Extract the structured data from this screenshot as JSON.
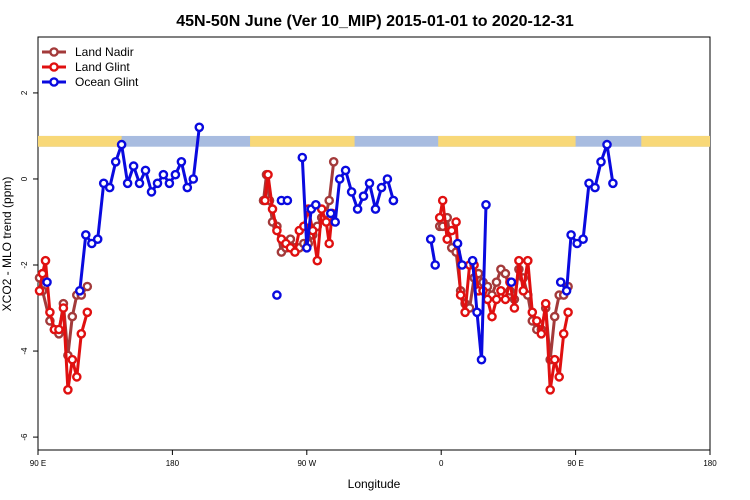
{
  "chart_data": {
    "type": "line",
    "title": "45N-50N June (Ver 10_MIP)   2015-01-01 to 2020-12-31",
    "xlabel": "Longitude",
    "ylabel": "XCO2 - MLO trend (ppm)",
    "x_ticks": [
      {
        "value": 90,
        "label": "90 E"
      },
      {
        "value": 180,
        "label": "180"
      },
      {
        "value": 270,
        "label": "90 W"
      },
      {
        "value": 360,
        "label": "0"
      },
      {
        "value": 450,
        "label": "90 E"
      },
      {
        "value": 540,
        "label": "180"
      }
    ],
    "y_ticks": [
      {
        "value": -6,
        "label": "-6"
      },
      {
        "value": -4,
        "label": "-4"
      },
      {
        "value": -2,
        "label": "-2"
      },
      {
        "value": 0,
        "label": "0"
      },
      {
        "value": 2,
        "label": "2"
      }
    ],
    "xlim": [
      90,
      540
    ],
    "ylim": [
      -6.3,
      3.3
    ],
    "grid": false,
    "legend_position": "top-left",
    "land_ocean_strip": {
      "y_range": [
        0.75,
        1.0
      ],
      "land_color": "#f8d878",
      "ocean_color": "#a8bce0",
      "land_intervals": [
        [
          90,
          146
        ],
        [
          232,
          302
        ],
        [
          358,
          450
        ],
        [
          494,
          540
        ]
      ]
    },
    "series": [
      {
        "name": "Land Nadir",
        "color": "#a33a3a",
        "points": [
          [
            91,
            -2.3
          ],
          [
            93,
            -2.6
          ],
          [
            98,
            -3.3
          ],
          [
            101,
            -3.5
          ],
          [
            104,
            -3.6
          ],
          [
            107,
            -2.9
          ],
          [
            110,
            -4.1
          ],
          [
            113,
            -3.2
          ],
          [
            116,
            -2.7
          ],
          [
            119,
            -2.7
          ],
          [
            123,
            -2.5
          ],
          null,
          [
            241,
            -0.5
          ],
          [
            243,
            0.1
          ],
          [
            245,
            -0.5
          ],
          [
            247,
            -1.0
          ],
          [
            250,
            -1.1
          ],
          [
            253,
            -1.7
          ],
          [
            256,
            -1.6
          ],
          [
            259,
            -1.4
          ],
          [
            262,
            -1.6
          ],
          [
            265,
            -1.6
          ],
          [
            268,
            -1.5
          ],
          [
            271,
            -1.5
          ],
          [
            274,
            -1.3
          ],
          [
            277,
            -1.1
          ],
          [
            280,
            -0.9
          ],
          [
            283,
            -0.8
          ],
          [
            285,
            -0.5
          ],
          [
            288,
            0.4
          ],
          null,
          [
            359,
            -1.1
          ],
          [
            361,
            -1.1
          ],
          [
            364,
            -0.9
          ],
          [
            367,
            -1.6
          ],
          [
            370,
            -1.7
          ],
          [
            373,
            -2.6
          ],
          [
            376,
            -2.9
          ],
          [
            379,
            -3.0
          ],
          [
            382,
            -2.3
          ],
          [
            385,
            -2.2
          ],
          [
            388,
            -2.4
          ],
          [
            391,
            -2.5
          ],
          [
            394,
            -2.7
          ],
          [
            397,
            -2.4
          ],
          [
            400,
            -2.1
          ],
          [
            403,
            -2.2
          ],
          [
            406,
            -2.6
          ],
          [
            409,
            -2.8
          ],
          [
            412,
            -2.1
          ],
          [
            415,
            -2.3
          ],
          [
            418,
            -2.7
          ],
          [
            421,
            -3.3
          ],
          [
            424,
            -3.5
          ],
          [
            427,
            -3.5
          ],
          [
            430,
            -3.0
          ],
          [
            433,
            -4.2
          ],
          [
            436,
            -3.2
          ],
          [
            439,
            -2.7
          ],
          [
            442,
            -2.7
          ],
          [
            445,
            -2.5
          ]
        ]
      },
      {
        "name": "Land Glint",
        "color": "#e01010",
        "points": [
          [
            91,
            -2.6
          ],
          [
            93,
            -2.2
          ],
          [
            95,
            -1.9
          ],
          [
            98,
            -3.1
          ],
          [
            101,
            -3.5
          ],
          [
            104,
            -3.5
          ],
          [
            107,
            -3.0
          ],
          [
            110,
            -4.9
          ],
          [
            113,
            -4.2
          ],
          [
            116,
            -4.6
          ],
          [
            119,
            -3.6
          ],
          [
            123,
            -3.1
          ],
          null,
          [
            242,
            -0.5
          ],
          [
            244,
            0.1
          ],
          [
            247,
            -0.7
          ],
          [
            250,
            -1.2
          ],
          [
            253,
            -1.4
          ],
          [
            256,
            -1.5
          ],
          [
            259,
            -1.6
          ],
          [
            262,
            -1.7
          ],
          [
            265,
            -1.2
          ],
          [
            268,
            -1.1
          ],
          [
            271,
            -0.7
          ],
          [
            274,
            -1.2
          ],
          [
            277,
            -1.9
          ],
          [
            280,
            -0.7
          ],
          [
            283,
            -1.0
          ],
          [
            285,
            -1.5
          ],
          [
            287,
            -0.8
          ],
          null,
          [
            359,
            -0.9
          ],
          [
            361,
            -0.5
          ],
          [
            364,
            -1.4
          ],
          [
            367,
            -1.2
          ],
          [
            370,
            -1.0
          ],
          [
            373,
            -2.7
          ],
          [
            376,
            -3.1
          ],
          [
            379,
            -2.0
          ],
          [
            382,
            -2.0
          ],
          [
            385,
            -2.6
          ],
          [
            388,
            -2.6
          ],
          [
            391,
            -2.8
          ],
          [
            394,
            -3.2
          ],
          [
            397,
            -2.8
          ],
          [
            400,
            -2.6
          ],
          [
            403,
            -2.8
          ],
          [
            406,
            -2.4
          ],
          [
            409,
            -3.0
          ],
          [
            412,
            -1.9
          ],
          [
            415,
            -2.6
          ],
          [
            418,
            -1.9
          ],
          [
            421,
            -3.1
          ],
          [
            424,
            -3.3
          ],
          [
            427,
            -3.6
          ],
          [
            430,
            -2.9
          ],
          [
            433,
            -4.9
          ],
          [
            436,
            -4.2
          ],
          [
            439,
            -4.6
          ],
          [
            442,
            -3.6
          ],
          [
            445,
            -3.1
          ]
        ]
      },
      {
        "name": "Ocean Glint",
        "color": "#0a0adf",
        "points": [
          [
            118,
            -2.6
          ],
          [
            122,
            -1.3
          ],
          [
            126,
            -1.5
          ],
          [
            130,
            -1.4
          ],
          [
            134,
            -0.1
          ],
          [
            138,
            -0.2
          ],
          [
            142,
            0.4
          ],
          [
            146,
            0.8
          ],
          [
            150,
            -0.1
          ],
          [
            154,
            0.3
          ],
          [
            158,
            -0.1
          ],
          [
            162,
            0.2
          ],
          [
            166,
            -0.3
          ],
          [
            170,
            -0.1
          ],
          [
            174,
            0.1
          ],
          [
            178,
            -0.1
          ],
          [
            182,
            0.1
          ],
          [
            186,
            0.4
          ],
          [
            190,
            -0.2
          ],
          [
            194,
            0.0
          ],
          [
            198,
            1.2
          ],
          null,
          [
            286,
            -0.8
          ],
          [
            289,
            -1.0
          ],
          [
            292,
            0.0
          ],
          [
            296,
            0.2
          ],
          [
            300,
            -0.3
          ],
          [
            304,
            -0.7
          ],
          [
            308,
            -0.4
          ],
          [
            312,
            -0.1
          ],
          [
            316,
            -0.7
          ],
          [
            320,
            -0.2
          ],
          [
            324,
            0.0
          ],
          [
            328,
            -0.5
          ],
          null,
          [
            440,
            -2.4
          ],
          [
            444,
            -2.6
          ],
          [
            447,
            -1.3
          ],
          [
            451,
            -1.5
          ],
          [
            455,
            -1.4
          ],
          [
            459,
            -0.1
          ],
          [
            463,
            -0.2
          ],
          [
            467,
            0.4
          ],
          [
            471,
            0.8
          ],
          [
            475,
            -0.1
          ]
        ]
      },
      {
        "name": "",
        "color": "#0a0adf",
        "points": [
          [
            267,
            0.5
          ],
          [
            270,
            -1.6
          ],
          [
            273,
            -0.7
          ],
          [
            276,
            -0.6
          ],
          null,
          [
            353,
            -1.4
          ],
          [
            356,
            -2.0
          ],
          null,
          [
            371,
            -1.5
          ],
          [
            374,
            -2.0
          ],
          null,
          [
            381,
            -1.9
          ],
          [
            384,
            -3.1
          ],
          [
            387,
            -4.2
          ],
          [
            390,
            -0.6
          ],
          null,
          [
            407,
            -2.4
          ]
        ]
      },
      {
        "name": "",
        "color": "#0a0adf",
        "points": [
          [
            96,
            -2.4
          ],
          null,
          [
            253,
            -0.5
          ],
          [
            257,
            -0.5
          ],
          null,
          [
            250,
            -2.7
          ],
          null,
          [
            328,
            -0.5
          ]
        ]
      }
    ]
  }
}
